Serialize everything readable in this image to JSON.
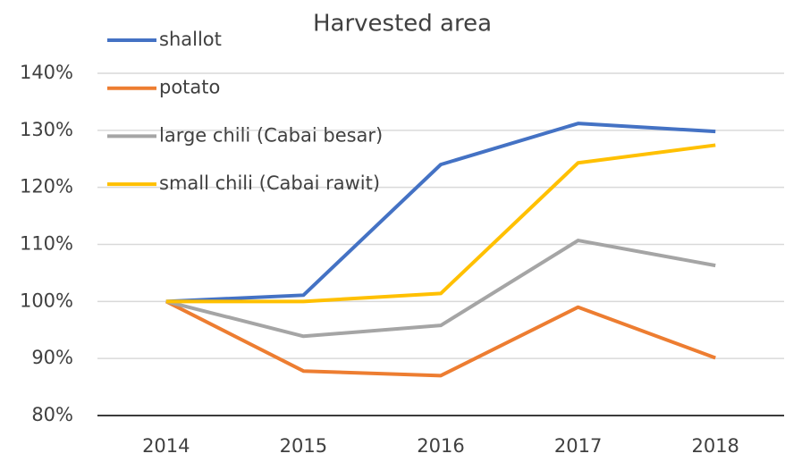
{
  "chart_data": {
    "type": "line",
    "title": "Harvested area",
    "categories": [
      "2014",
      "2015",
      "2016",
      "2017",
      "2018"
    ],
    "series": [
      {
        "name": "shallot",
        "color": "#4472c4",
        "values": [
          100,
          101.1,
          124,
          131.2,
          129.8
        ]
      },
      {
        "name": "potato",
        "color": "#ed7d31",
        "values": [
          100,
          87.8,
          87,
          99,
          90.1
        ]
      },
      {
        "name": "large chili (Cabai besar)",
        "color": "#a5a5a5",
        "values": [
          100,
          93.9,
          95.8,
          110.7,
          106.3
        ]
      },
      {
        "name": "small chili (Cabai rawit)",
        "color": "#ffc000",
        "values": [
          100,
          100,
          101.4,
          124.3,
          127.4
        ]
      }
    ],
    "ylim": [
      80,
      140
    ],
    "yticks": [
      {
        "value": 80,
        "label": "80%"
      },
      {
        "value": 90,
        "label": "90%"
      },
      {
        "value": 100,
        "label": "100%"
      },
      {
        "value": 110,
        "label": "110%"
      },
      {
        "value": 120,
        "label": "120%"
      },
      {
        "value": 130,
        "label": "130%"
      },
      {
        "value": 140,
        "label": "140%"
      }
    ],
    "grid": true,
    "legend": "top-left"
  }
}
